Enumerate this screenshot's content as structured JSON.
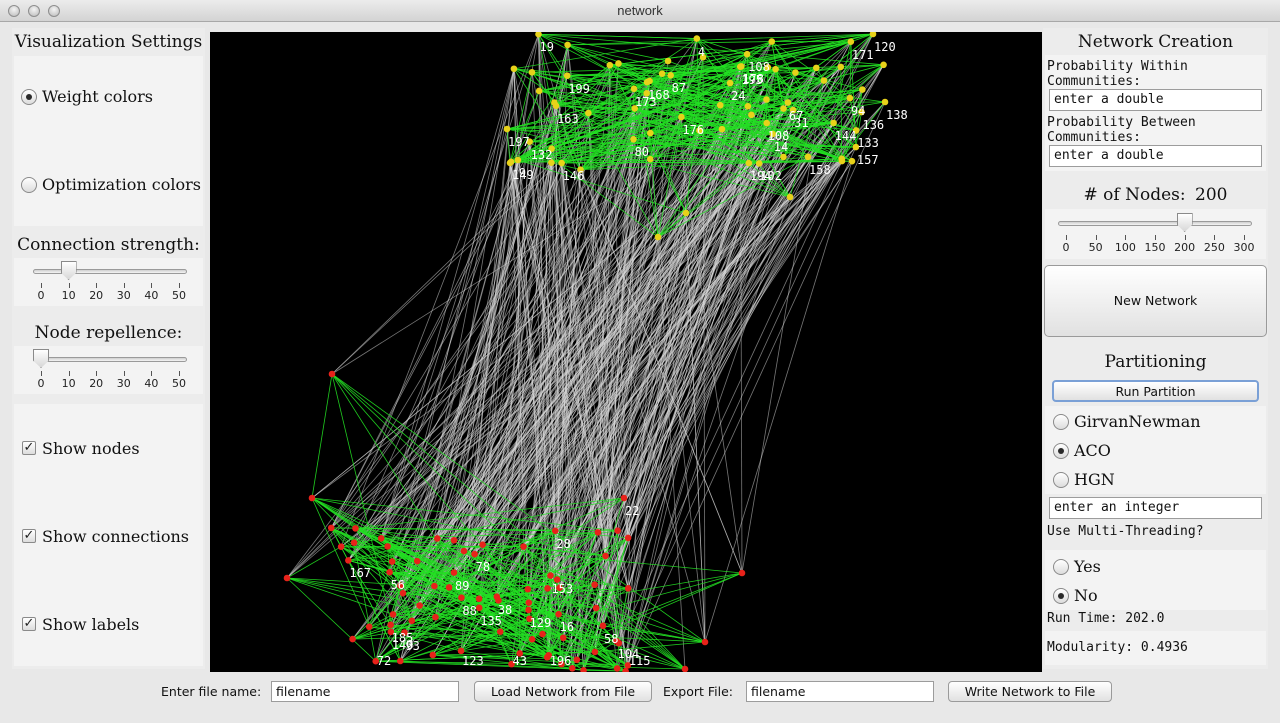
{
  "window": {
    "title": "network"
  },
  "viz": {
    "title": "Visualization Settings",
    "weight_colors": "Weight colors",
    "optimization_colors": "Optimization colors",
    "connection_strength": {
      "label": "Connection strength:",
      "ticks": [
        "0",
        "10",
        "20",
        "30",
        "40",
        "50"
      ],
      "value": 10,
      "min": 0,
      "max": 50
    },
    "node_repellence": {
      "label": "Node repellence:",
      "ticks": [
        "0",
        "10",
        "20",
        "30",
        "40",
        "50"
      ],
      "value": 0,
      "min": 0,
      "max": 50
    },
    "show_nodes": "Show nodes",
    "show_connections": "Show connections",
    "show_labels": "Show labels",
    "check_mark": "✓"
  },
  "creation": {
    "title": "Network Creation",
    "prob_within_label": "Probability Within Communities:",
    "prob_within_value": "enter a double",
    "prob_between_label": "Probability Between Communities:",
    "prob_between_value": "enter a double",
    "nodes_label": "# of Nodes:",
    "nodes_value": "200",
    "nodes_slider": {
      "ticks": [
        "0",
        "50",
        "100",
        "150",
        "200",
        "250",
        "300"
      ],
      "value": 200,
      "min": 0,
      "max": 300
    },
    "new_network": "New Network"
  },
  "partition": {
    "title": "Partitioning",
    "run_button": "Run Partition",
    "girvan": "GirvanNewman",
    "aco": "ACO",
    "hgn": "HGN",
    "integer_field": "enter an integer",
    "multithread_label": "Use Multi-Threading?",
    "yes": "Yes",
    "no": "No",
    "run_time": "Run Time: 202.0",
    "modularity": "Modularity: 0.4936"
  },
  "bottom": {
    "file_name_label": "Enter file name:",
    "file_name_value": "filename",
    "load_button": "Load Network from File",
    "export_label": "Export File:",
    "export_value": "filename",
    "write_button": "Write Network to File"
  },
  "graph": {
    "colors": {
      "top_nodes": "#e8d21a",
      "bottom_nodes": "#e8221a",
      "intra_edges": "#22e022",
      "inter_edges": "#d8d8d8"
    },
    "top_labels": [
      "80",
      "157",
      "199",
      "171",
      "195",
      "24",
      "108",
      "19",
      "149",
      "132",
      "197",
      "31",
      "163",
      "87",
      "168",
      "94",
      "173",
      "176",
      "178",
      "194",
      "14",
      "120",
      "108",
      "133",
      "136",
      "102",
      "144",
      "158",
      "146",
      "67",
      "9",
      "4",
      "138"
    ],
    "bottom_labels": [
      "115",
      "153",
      "135",
      "28",
      "58",
      "43",
      "167",
      "38",
      "123",
      "196",
      "104",
      "22",
      "93",
      "56",
      "78",
      "140",
      "16",
      "185",
      "72",
      "89",
      "129",
      "88"
    ]
  }
}
